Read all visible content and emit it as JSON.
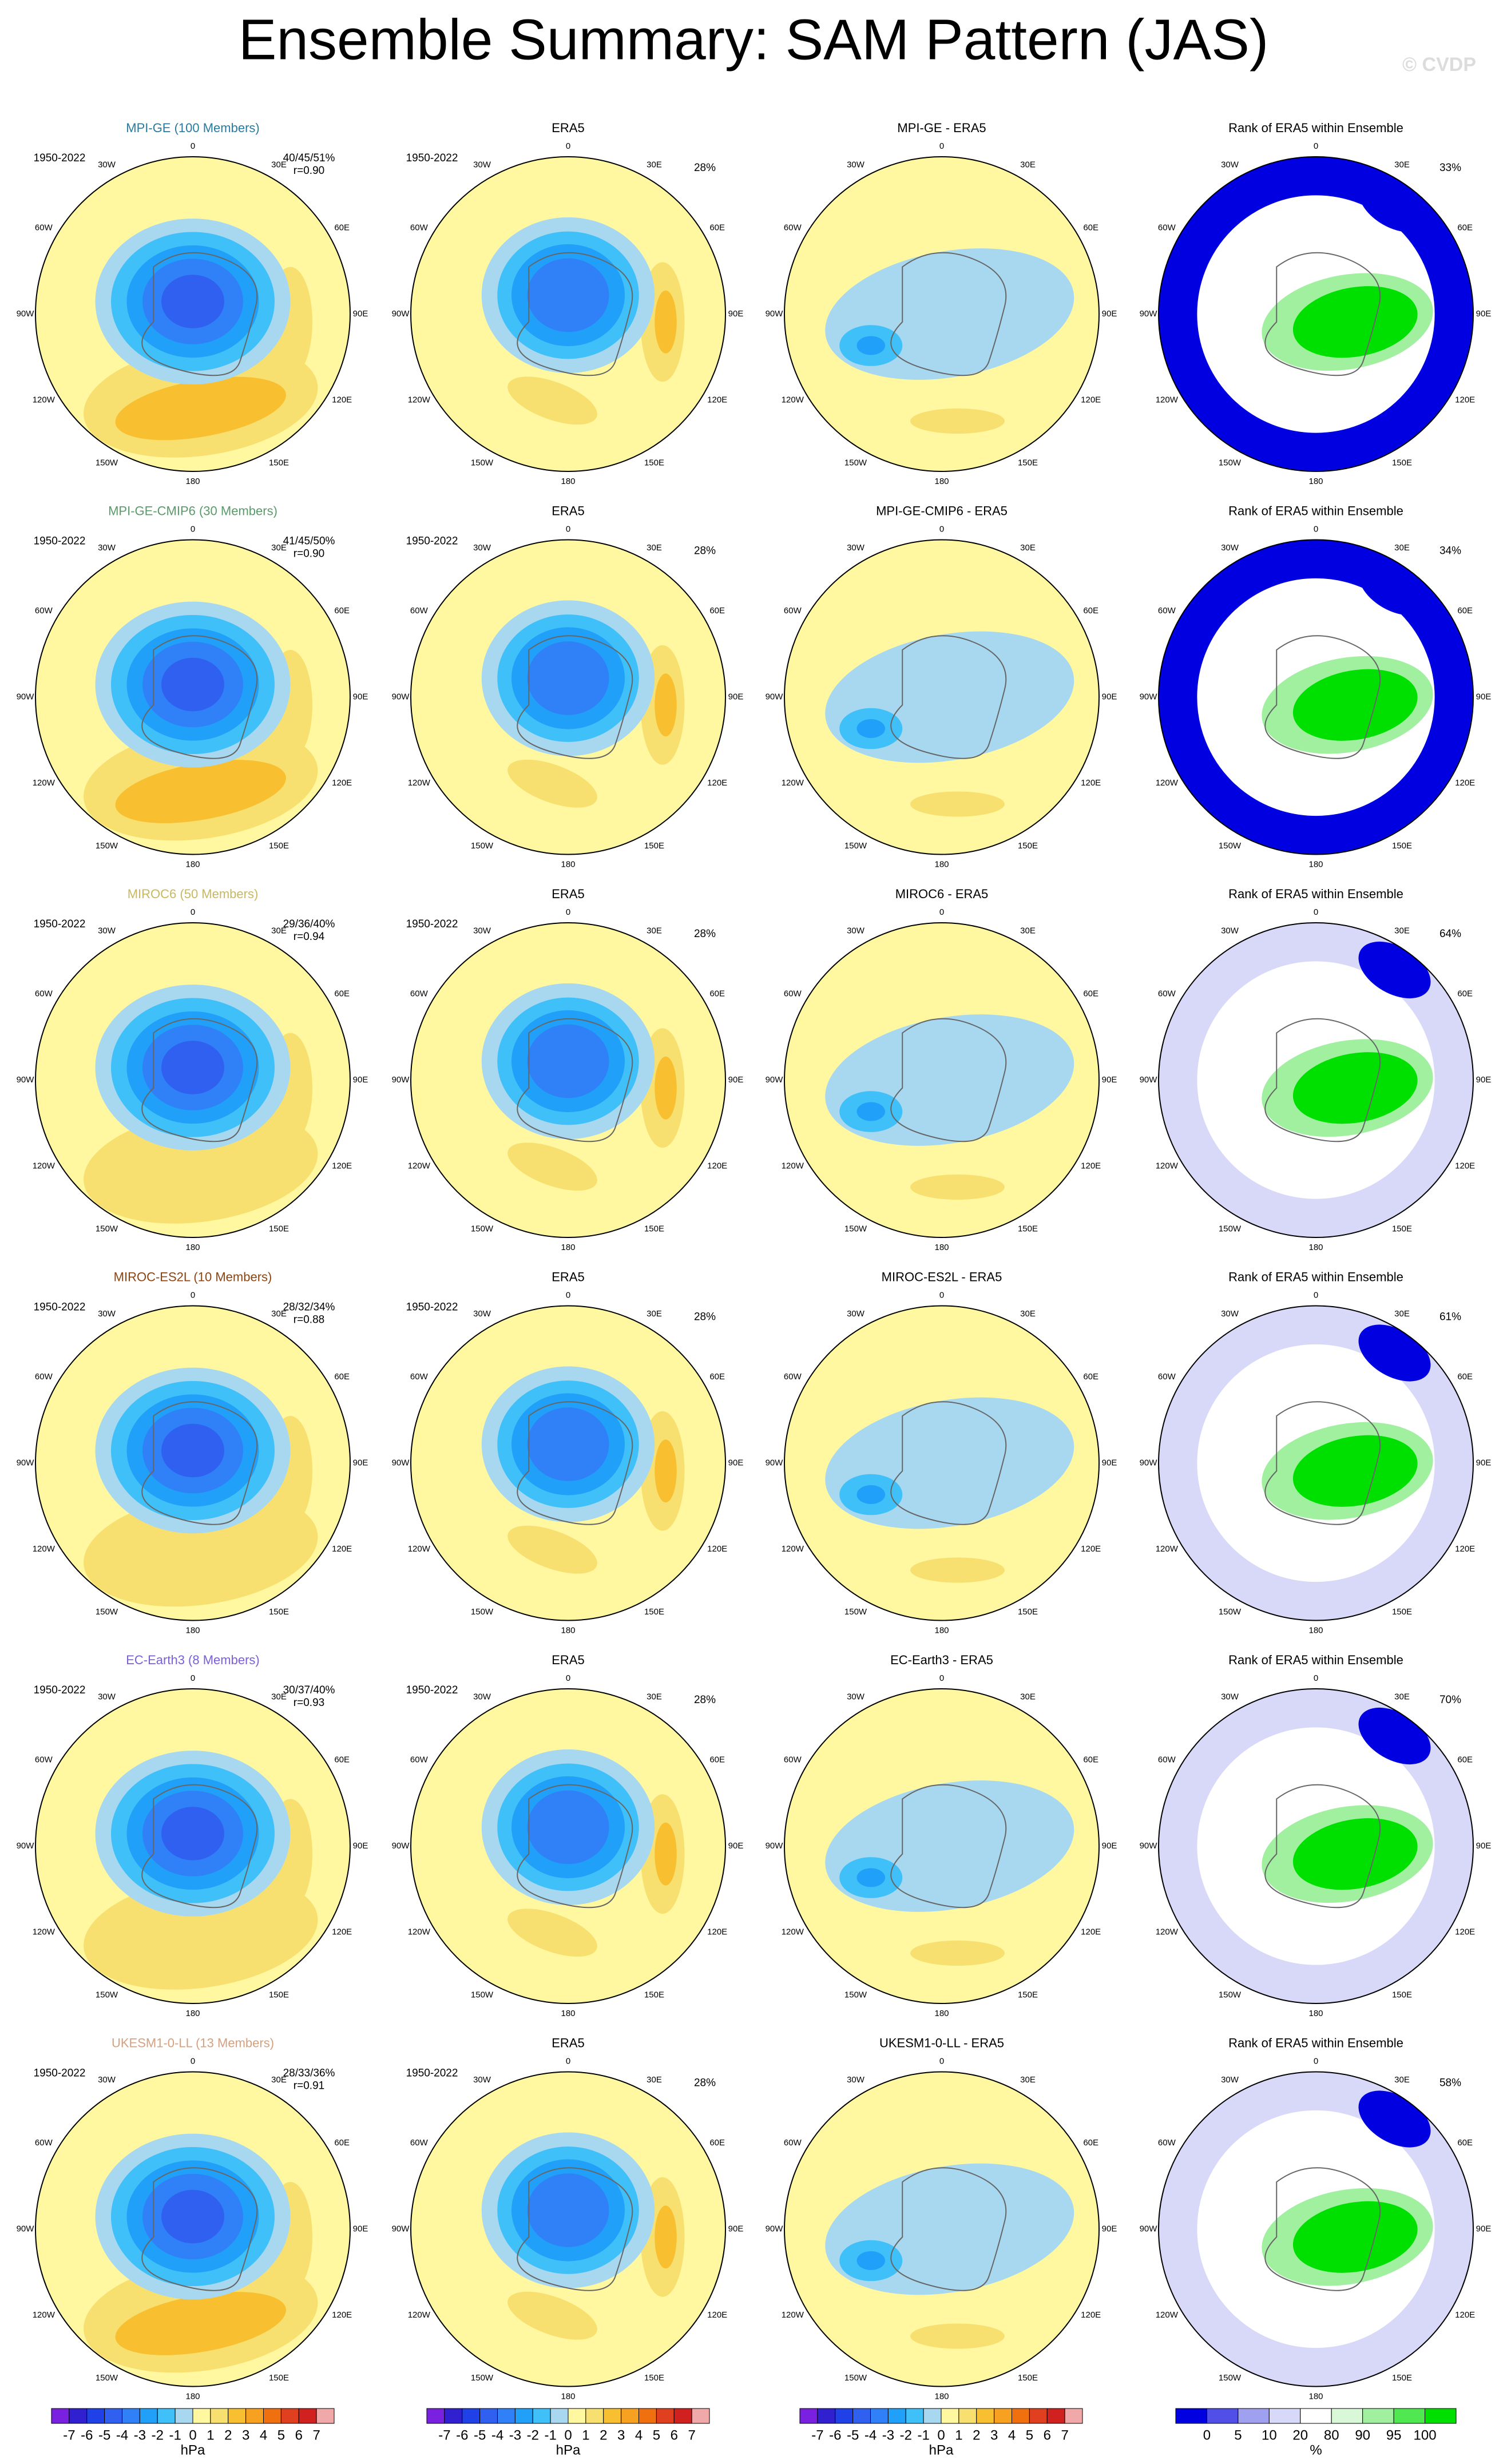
{
  "title": "Ensemble Summary: SAM Pattern (JAS)",
  "watermark": "© CVDP",
  "lon_labels": [
    "0",
    "30E",
    "60E",
    "90E",
    "120E",
    "150E",
    "180",
    "150W",
    "120W",
    "90W",
    "60W",
    "30W"
  ],
  "rows": [
    {
      "model": "MPI-GE (100 Members)",
      "model_color": "#2a7aa0",
      "period": "1950-2022",
      "stats": "40/45/51%",
      "corr": "r=0.90",
      "era5_title": "ERA5",
      "era5_pct": "28%",
      "diff_title": "MPI-GE - ERA5",
      "rank_title": "Rank of ERA5 within Ensemble",
      "rank_pct": "33%"
    },
    {
      "model": "MPI-GE-CMIP6 (30 Members)",
      "model_color": "#5a9a6a",
      "period": "1950-2022",
      "stats": "41/45/50%",
      "corr": "r=0.90",
      "era5_title": "ERA5",
      "era5_pct": "28%",
      "diff_title": "MPI-GE-CMIP6 - ERA5",
      "rank_title": "Rank of ERA5 within Ensemble",
      "rank_pct": "34%"
    },
    {
      "model": "MIROC6 (50 Members)",
      "model_color": "#c8b860",
      "period": "1950-2022",
      "stats": "29/36/40%",
      "corr": "r=0.94",
      "era5_title": "ERA5",
      "era5_pct": "28%",
      "diff_title": "MIROC6 - ERA5",
      "rank_title": "Rank of ERA5 within Ensemble",
      "rank_pct": "64%"
    },
    {
      "model": "MIROC-ES2L (10 Members)",
      "model_color": "#8b4513",
      "period": "1950-2022",
      "stats": "28/32/34%",
      "corr": "r=0.88",
      "era5_title": "ERA5",
      "era5_pct": "28%",
      "diff_title": "MIROC-ES2L - ERA5",
      "rank_title": "Rank of ERA5 within Ensemble",
      "rank_pct": "61%"
    },
    {
      "model": "EC-Earth3 (8 Members)",
      "model_color": "#7b5fd6",
      "period": "1950-2022",
      "stats": "30/37/40%",
      "corr": "r=0.93",
      "era5_title": "ERA5",
      "era5_pct": "28%",
      "diff_title": "EC-Earth3 - ERA5",
      "rank_title": "Rank of ERA5 within Ensemble",
      "rank_pct": "70%"
    },
    {
      "model": "UKESM1-0-LL (13 Members)",
      "model_color": "#d4a080",
      "period": "1950-2022",
      "stats": "28/33/36%",
      "corr": "r=0.91",
      "era5_title": "ERA5",
      "era5_pct": "28%",
      "diff_title": "UKESM1-0-LL - ERA5",
      "rank_title": "Rank of ERA5 within Ensemble",
      "rank_pct": "58%"
    }
  ],
  "colorbars": {
    "hpa": {
      "levels": [
        -7,
        -6,
        -5,
        -4,
        -3,
        -2,
        -1,
        0,
        1,
        2,
        3,
        4,
        5,
        6,
        7
      ],
      "colors": [
        "#7a20e0",
        "#3020d0",
        "#2040e8",
        "#3060f0",
        "#3080f8",
        "#20a0f8",
        "#40c0f8",
        "#a8d8f0",
        "#fff8a0",
        "#f8e070",
        "#f8c030",
        "#f8a020",
        "#f07010",
        "#e04020",
        "#d02020",
        "#f0a8a8"
      ],
      "unit": "hPa"
    },
    "rank": {
      "levels": [
        0,
        5,
        10,
        20,
        80,
        90,
        95,
        100
      ],
      "colors": [
        "#0000e0",
        "#5050e8",
        "#a0a0f0",
        "#d8d8f8",
        "#ffffff",
        "#d8f8d8",
        "#a0f0a0",
        "#50e850",
        "#00e000"
      ],
      "unit": "%"
    }
  }
}
